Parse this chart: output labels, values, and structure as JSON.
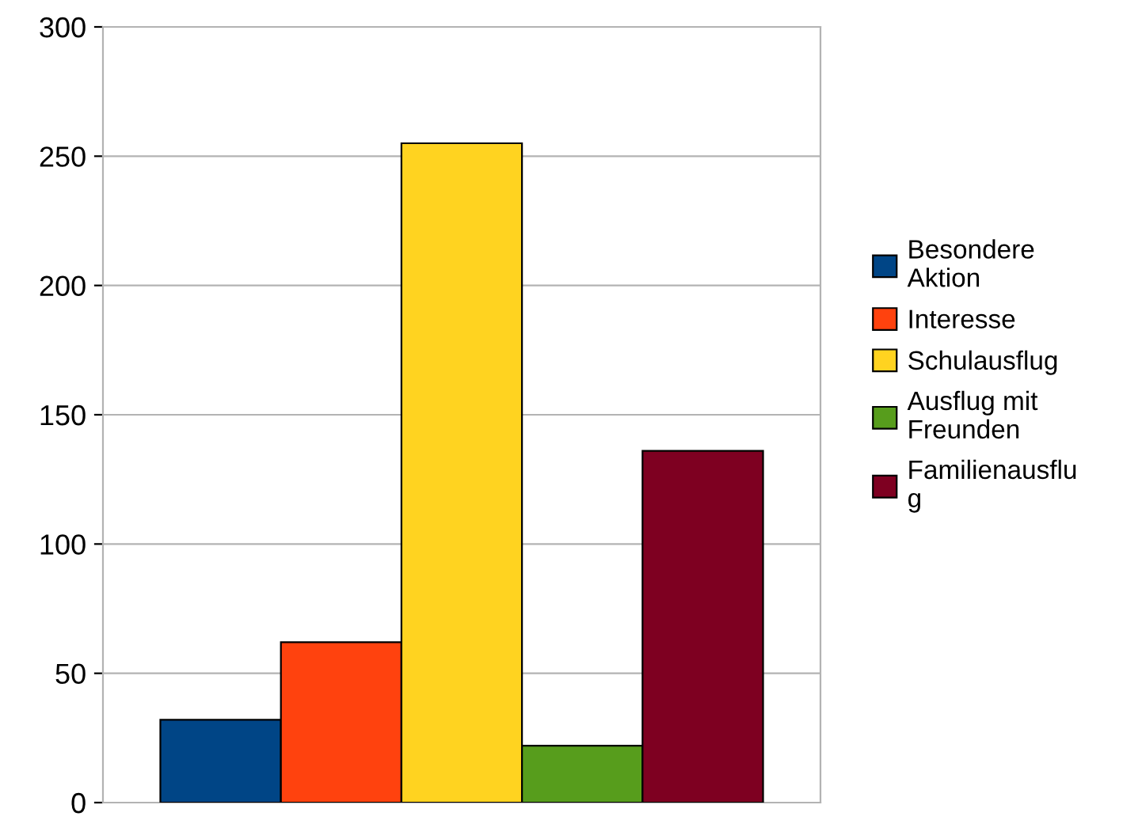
{
  "chart_data": {
    "type": "bar",
    "categories": [
      null
    ],
    "series": [
      {
        "name": "Besondere Aktion",
        "color": "#004586",
        "values": [
          32
        ]
      },
      {
        "name": "Interesse",
        "color": "#ff420e",
        "values": [
          62
        ]
      },
      {
        "name": "Schulausflug",
        "color": "#ffd320",
        "values": [
          255
        ]
      },
      {
        "name": "Ausflug mit Freunden",
        "color": "#579d1c",
        "values": [
          22
        ]
      },
      {
        "name": "Familienausflug",
        "color": "#7e0021",
        "values": [
          136
        ]
      }
    ],
    "ylim": [
      0,
      300
    ],
    "yticks": [
      0,
      50,
      100,
      150,
      200,
      250,
      300
    ],
    "grid": "y",
    "legend": "right"
  }
}
